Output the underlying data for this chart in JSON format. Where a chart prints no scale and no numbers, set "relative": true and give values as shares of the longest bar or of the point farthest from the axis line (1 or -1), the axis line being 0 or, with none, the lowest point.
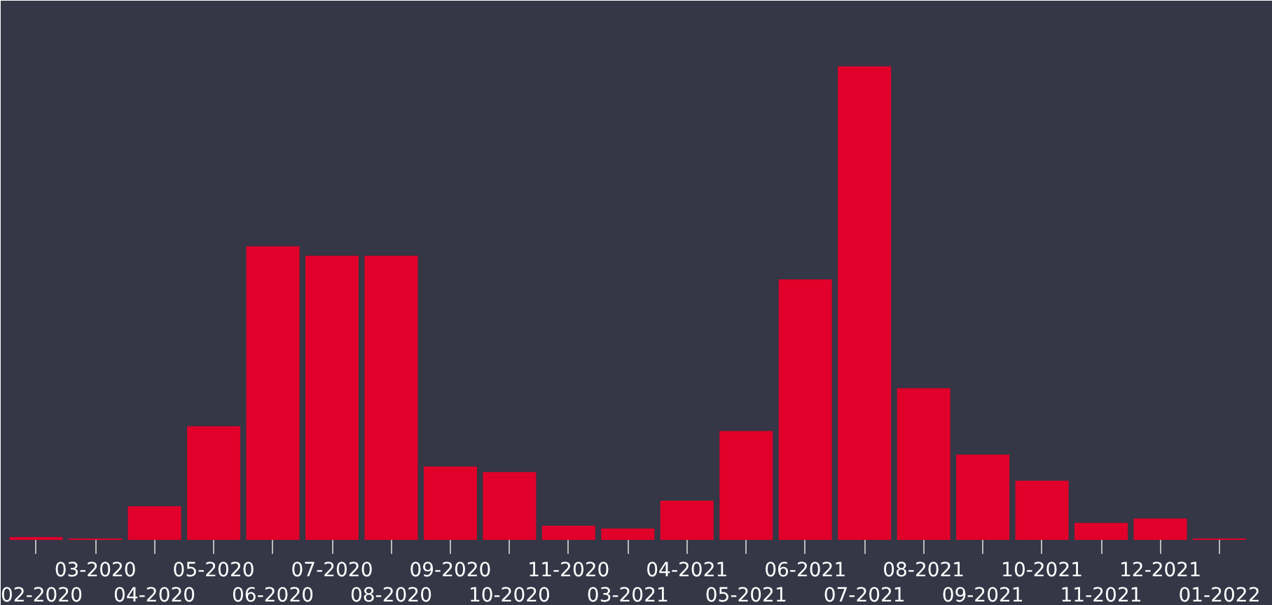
{
  "chart_data": {
    "type": "bar",
    "relative": true,
    "color": "#e0002a",
    "grid": false,
    "categories": [
      "02-2020",
      "03-2020",
      "04-2020",
      "05-2020",
      "06-2020",
      "07-2020",
      "08-2020",
      "09-2020",
      "10-2020",
      "11-2020",
      "03-2021",
      "04-2021",
      "05-2021",
      "06-2021",
      "07-2021",
      "08-2021",
      "09-2021",
      "10-2021",
      "11-2021",
      "12-2021",
      "01-2022"
    ],
    "values": [
      0.006,
      0.003,
      0.071,
      0.24,
      0.62,
      0.6,
      0.6,
      0.155,
      0.143,
      0.03,
      0.024,
      0.083,
      0.23,
      0.55,
      1,
      0.32,
      0.18,
      0.125,
      0.036,
      0.045,
      0.003
    ]
  }
}
